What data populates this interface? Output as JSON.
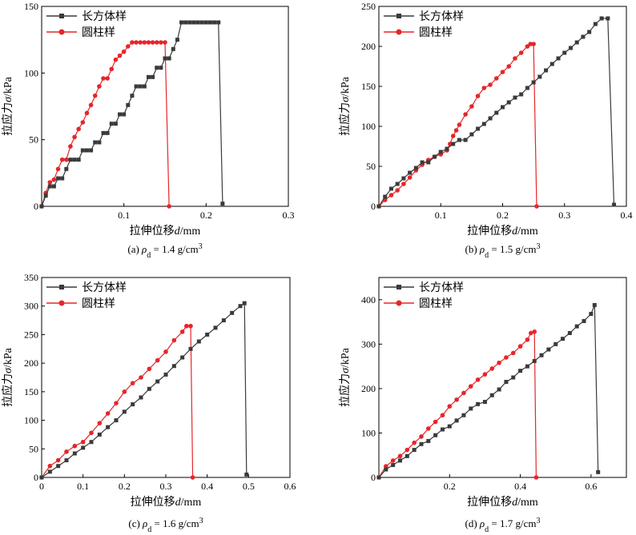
{
  "colors": {
    "rect": "#3a3a3a",
    "cyl": "#e5262a",
    "axis": "#000000"
  },
  "chart_data": [
    {
      "id": "a",
      "type": "line",
      "caption": {
        "prefix": "(a) ",
        "rho": "ρ",
        "sub": "d",
        "eq": " = 1.4 g/cm",
        "sup": "3"
      },
      "xlabel": {
        "text": "拉伸位移",
        "var": "d",
        "unit": "/mm"
      },
      "ylabel": {
        "text": "拉应力",
        "var": "σ",
        "unit": "/kPa"
      },
      "xlim": [
        0,
        0.3
      ],
      "ylim": [
        0,
        150
      ],
      "xticks": [
        0.1,
        0.2,
        0.3
      ],
      "xtick_labels": [
        "0.1",
        "0.2",
        "0.3"
      ],
      "yticks": [
        0,
        50,
        100,
        150
      ],
      "ytick_labels": [
        "0",
        "50",
        "100",
        "150"
      ],
      "legend": "top-left",
      "series": [
        {
          "name": "长方体样",
          "marker": "square",
          "color": "#3a3a3a",
          "x": [
            0.0,
            0.005,
            0.01,
            0.015,
            0.02,
            0.025,
            0.03,
            0.035,
            0.04,
            0.045,
            0.05,
            0.055,
            0.06,
            0.065,
            0.07,
            0.075,
            0.08,
            0.085,
            0.09,
            0.095,
            0.1,
            0.105,
            0.11,
            0.115,
            0.12,
            0.125,
            0.13,
            0.135,
            0.14,
            0.145,
            0.15,
            0.155,
            0.16,
            0.165,
            0.17,
            0.175,
            0.18,
            0.185,
            0.19,
            0.195,
            0.2,
            0.205,
            0.21,
            0.215,
            0.22
          ],
          "y": [
            0,
            8,
            15,
            15,
            21,
            21,
            28,
            35,
            35,
            35,
            42,
            42,
            42,
            48,
            48,
            55,
            55,
            62,
            62,
            69,
            69,
            76,
            83,
            90,
            90,
            90,
            97,
            97,
            104,
            104,
            111,
            111,
            118,
            125,
            138,
            138,
            138,
            138,
            138,
            138,
            138,
            138,
            138,
            138,
            2
          ]
        },
        {
          "name": "圆柱样",
          "marker": "circle",
          "color": "#e5262a",
          "x": [
            0.0,
            0.005,
            0.01,
            0.015,
            0.02,
            0.025,
            0.03,
            0.035,
            0.04,
            0.045,
            0.05,
            0.055,
            0.06,
            0.065,
            0.07,
            0.075,
            0.08,
            0.085,
            0.09,
            0.095,
            0.1,
            0.105,
            0.11,
            0.115,
            0.12,
            0.125,
            0.13,
            0.135,
            0.14,
            0.145,
            0.15,
            0.155
          ],
          "y": [
            0,
            10,
            18,
            20,
            28,
            35,
            35,
            45,
            52,
            58,
            63,
            70,
            76,
            83,
            90,
            96,
            96,
            103,
            110,
            113,
            116,
            120,
            123,
            123,
            123,
            123,
            123,
            123,
            123,
            123,
            123,
            0
          ]
        }
      ]
    },
    {
      "id": "b",
      "type": "line",
      "caption": {
        "prefix": "(b) ",
        "rho": "ρ",
        "sub": "d",
        "eq": " = 1.5 g/cm",
        "sup": "3"
      },
      "xlabel": {
        "text": "拉伸位移",
        "var": "d",
        "unit": "/mm"
      },
      "ylabel": {
        "text": "拉应力",
        "var": "σ",
        "unit": "/kPa"
      },
      "xlim": [
        0,
        0.4
      ],
      "ylim": [
        0,
        250
      ],
      "xticks": [
        0.1,
        0.2,
        0.3,
        0.4
      ],
      "xtick_labels": [
        "0.1",
        "0.2",
        "0.3",
        "0.4"
      ],
      "yticks": [
        0,
        50,
        100,
        150,
        200,
        250
      ],
      "ytick_labels": [
        "0",
        "50",
        "100",
        "150",
        "200",
        "250"
      ],
      "legend": "top-left",
      "series": [
        {
          "name": "长方体样",
          "marker": "square",
          "color": "#3a3a3a",
          "x": [
            0.0,
            0.01,
            0.02,
            0.03,
            0.04,
            0.05,
            0.06,
            0.07,
            0.08,
            0.09,
            0.1,
            0.11,
            0.12,
            0.13,
            0.14,
            0.15,
            0.16,
            0.17,
            0.18,
            0.19,
            0.2,
            0.21,
            0.22,
            0.23,
            0.24,
            0.25,
            0.26,
            0.27,
            0.28,
            0.29,
            0.3,
            0.31,
            0.32,
            0.33,
            0.34,
            0.35,
            0.36,
            0.37,
            0.38
          ],
          "y": [
            0,
            12,
            22,
            28,
            35,
            42,
            48,
            55,
            55,
            62,
            68,
            72,
            78,
            83,
            83,
            90,
            97,
            103,
            110,
            117,
            124,
            130,
            136,
            140,
            148,
            155,
            162,
            170,
            178,
            185,
            192,
            198,
            205,
            212,
            218,
            228,
            235,
            235,
            2
          ]
        },
        {
          "name": "圆柱样",
          "marker": "circle",
          "color": "#e5262a",
          "x": [
            0.0,
            0.01,
            0.02,
            0.03,
            0.04,
            0.05,
            0.06,
            0.07,
            0.08,
            0.09,
            0.1,
            0.11,
            0.115,
            0.12,
            0.125,
            0.13,
            0.14,
            0.15,
            0.16,
            0.17,
            0.18,
            0.19,
            0.2,
            0.21,
            0.22,
            0.23,
            0.24,
            0.245,
            0.25,
            0.255
          ],
          "y": [
            0,
            8,
            14,
            20,
            28,
            36,
            45,
            52,
            58,
            62,
            65,
            70,
            78,
            88,
            95,
            102,
            115,
            125,
            138,
            148,
            152,
            160,
            168,
            175,
            185,
            192,
            200,
            203,
            203,
            0
          ]
        }
      ]
    },
    {
      "id": "c",
      "type": "line",
      "caption": {
        "prefix": "(c) ",
        "rho": "ρ",
        "sub": "d",
        "eq": " = 1.6 g/cm",
        "sup": "3"
      },
      "xlabel": {
        "text": "拉伸位移",
        "var": "d",
        "unit": "/mm"
      },
      "ylabel": {
        "text": "拉应力",
        "var": "σ",
        "unit": "/kPa"
      },
      "xlim": [
        0,
        0.6
      ],
      "ylim": [
        0,
        350
      ],
      "xticks": [
        0,
        0.1,
        0.2,
        0.3,
        0.4,
        0.5,
        0.6
      ],
      "xtick_labels": [
        "0",
        "0.1",
        "0.2",
        "0.3",
        "0.4",
        "0.5",
        "0.6"
      ],
      "yticks": [
        0,
        50,
        100,
        150,
        200,
        250,
        300,
        350
      ],
      "ytick_labels": [
        "0",
        "50",
        "100",
        "150",
        "200",
        "250",
        "300",
        "350"
      ],
      "legend": "top-left",
      "series": [
        {
          "name": "长方体样",
          "marker": "square",
          "color": "#3a3a3a",
          "x": [
            0.0,
            0.02,
            0.04,
            0.06,
            0.08,
            0.1,
            0.12,
            0.14,
            0.16,
            0.18,
            0.2,
            0.22,
            0.24,
            0.26,
            0.28,
            0.3,
            0.32,
            0.34,
            0.36,
            0.38,
            0.4,
            0.42,
            0.44,
            0.46,
            0.48,
            0.49,
            0.495
          ],
          "y": [
            0,
            10,
            20,
            30,
            42,
            52,
            62,
            75,
            88,
            100,
            115,
            128,
            140,
            155,
            168,
            180,
            195,
            210,
            225,
            238,
            250,
            262,
            275,
            288,
            300,
            305,
            5
          ]
        },
        {
          "name": "圆柱样",
          "marker": "circle",
          "color": "#e5262a",
          "x": [
            0.0,
            0.02,
            0.04,
            0.06,
            0.08,
            0.1,
            0.12,
            0.14,
            0.16,
            0.18,
            0.2,
            0.22,
            0.24,
            0.26,
            0.28,
            0.3,
            0.32,
            0.34,
            0.35,
            0.36,
            0.365
          ],
          "y": [
            0,
            20,
            30,
            45,
            55,
            62,
            78,
            95,
            112,
            130,
            150,
            165,
            175,
            190,
            205,
            220,
            240,
            255,
            265,
            265,
            0
          ]
        }
      ]
    },
    {
      "id": "d",
      "type": "line",
      "caption": {
        "prefix": "(d) ",
        "rho": "ρ",
        "sub": "d",
        "eq": " = 1.7 g/cm",
        "sup": "3"
      },
      "xlabel": {
        "text": "拉伸位移",
        "var": "d",
        "unit": "/mm"
      },
      "ylabel": {
        "text": "拉应力",
        "var": "σ",
        "unit": "/kPa"
      },
      "xlim": [
        0,
        0.7
      ],
      "ylim": [
        0,
        450
      ],
      "xticks": [
        0.2,
        0.4,
        0.6
      ],
      "xtick_labels": [
        "0.2",
        "0.4",
        "0.6"
      ],
      "yticks": [
        0,
        100,
        200,
        300,
        400
      ],
      "ytick_labels": [
        "0",
        "100",
        "200",
        "300",
        "400"
      ],
      "legend": "top-left",
      "series": [
        {
          "name": "长方体样",
          "marker": "square",
          "color": "#3a3a3a",
          "x": [
            0.0,
            0.02,
            0.04,
            0.06,
            0.08,
            0.1,
            0.12,
            0.14,
            0.16,
            0.18,
            0.2,
            0.22,
            0.24,
            0.26,
            0.28,
            0.3,
            0.32,
            0.34,
            0.36,
            0.38,
            0.4,
            0.42,
            0.44,
            0.46,
            0.48,
            0.5,
            0.52,
            0.54,
            0.56,
            0.58,
            0.6,
            0.61,
            0.62
          ],
          "y": [
            0,
            18,
            28,
            38,
            48,
            62,
            75,
            82,
            95,
            108,
            115,
            128,
            140,
            155,
            165,
            170,
            185,
            198,
            215,
            225,
            240,
            250,
            262,
            275,
            288,
            300,
            312,
            325,
            340,
            352,
            368,
            388,
            12
          ]
        },
        {
          "name": "圆柱样",
          "marker": "circle",
          "color": "#e5262a",
          "x": [
            0.0,
            0.02,
            0.04,
            0.06,
            0.08,
            0.1,
            0.12,
            0.14,
            0.16,
            0.18,
            0.2,
            0.22,
            0.24,
            0.26,
            0.28,
            0.3,
            0.32,
            0.34,
            0.36,
            0.38,
            0.4,
            0.42,
            0.43,
            0.44,
            0.445
          ],
          "y": [
            0,
            25,
            38,
            48,
            62,
            78,
            92,
            110,
            125,
            140,
            160,
            175,
            190,
            205,
            220,
            232,
            245,
            258,
            270,
            280,
            295,
            310,
            325,
            328,
            0
          ]
        }
      ]
    }
  ]
}
